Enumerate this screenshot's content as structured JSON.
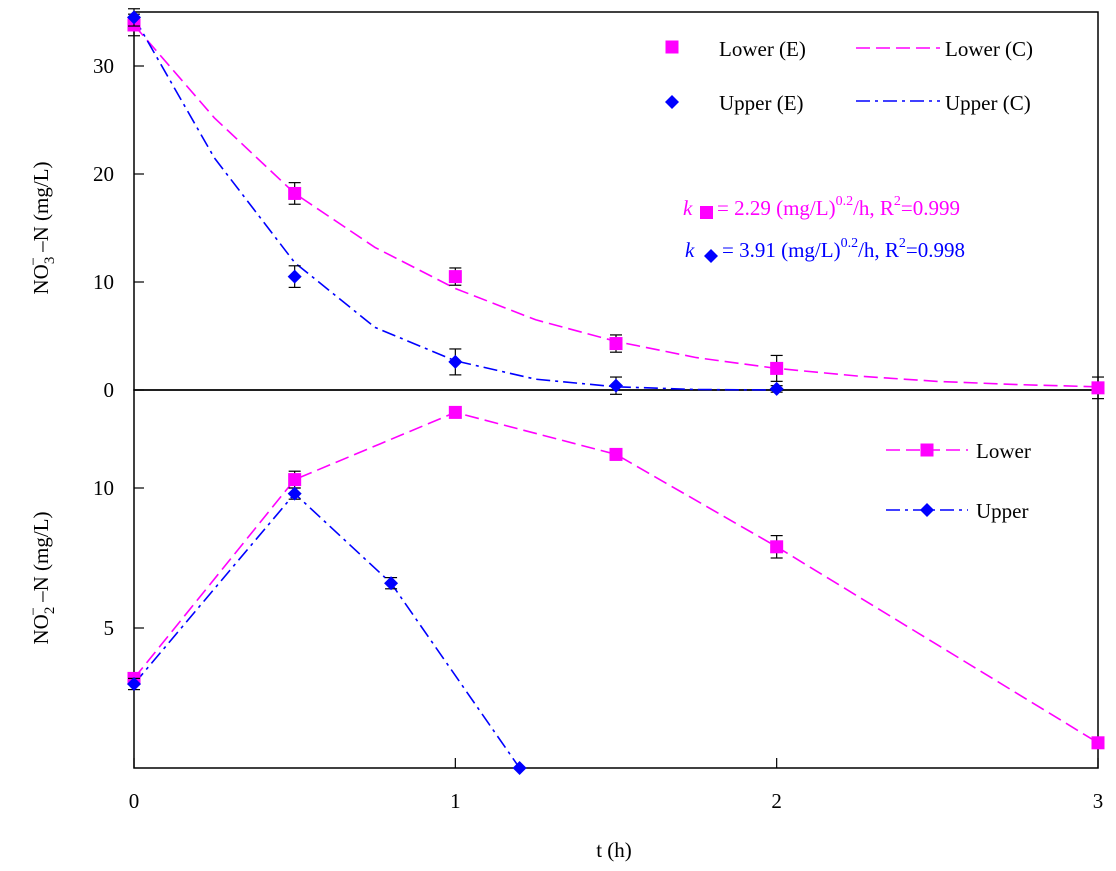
{
  "chart_data": [
    {
      "type": "scatter",
      "panel": "top",
      "ylabel_main": "NO",
      "ylabel_sub": "3",
      "ylabel_sup": "−",
      "ylabel_rest": " –N (mg/L)",
      "xlim": [
        0,
        3
      ],
      "ylim": [
        0,
        35
      ],
      "yticks": [
        0,
        10,
        20,
        30
      ],
      "series": [
        {
          "name": "Lower (E)",
          "kind": "points",
          "marker": "square",
          "color": "#ff00ff",
          "x": [
            0,
            0.5,
            1,
            1.5,
            2,
            3
          ],
          "y": [
            33.8,
            18.2,
            10.5,
            4.3,
            2.0,
            0.2
          ],
          "err": [
            1.0,
            1.0,
            0.8,
            0.8,
            1.2,
            1.0
          ]
        },
        {
          "name": "Upper (E)",
          "kind": "points",
          "marker": "diamond",
          "color": "#0000ff",
          "x": [
            0,
            0.5,
            1,
            1.5,
            2
          ],
          "y": [
            34.5,
            10.5,
            2.6,
            0.4,
            0.1
          ],
          "err": [
            0.8,
            1.0,
            1.2,
            0.8,
            0.3
          ]
        },
        {
          "name": "Lower (C)",
          "kind": "curve",
          "dash": "dash",
          "color": "#ff00ff",
          "x": [
            0,
            0.25,
            0.5,
            0.75,
            1,
            1.25,
            1.5,
            1.75,
            2,
            2.25,
            2.5,
            2.75,
            3
          ],
          "y": [
            33.8,
            25.2,
            18.2,
            13.2,
            9.4,
            6.5,
            4.5,
            3.0,
            2.0,
            1.3,
            0.8,
            0.5,
            0.3
          ]
        },
        {
          "name": "Upper (C)",
          "kind": "curve",
          "dash": "dashdot",
          "color": "#0000ff",
          "x": [
            0,
            0.25,
            0.5,
            0.75,
            1,
            1.25,
            1.5,
            1.75,
            2
          ],
          "y": [
            34.5,
            21.5,
            11.8,
            5.8,
            2.7,
            1.0,
            0.3,
            0.05,
            0.0
          ]
        }
      ],
      "annotations": {
        "k_lower": {
          "k": "k",
          "text": " =  2.29  (mg/L)",
          "sup": "0.2",
          "text2": "/h, R",
          "sup2": "2",
          "text3": "=0.999",
          "color": "#ff00ff"
        },
        "k_upper": {
          "k": "k",
          "text": " = 3.91  (mg/L)",
          "sup": "0.2",
          "text2": "/h, R",
          "sup2": "2",
          "text3": "=0.998",
          "color": "#0000ff"
        }
      },
      "legend": "top-right"
    },
    {
      "type": "line",
      "panel": "bottom",
      "ylabel_main": "NO",
      "ylabel_sub": "2",
      "ylabel_sup": "−",
      "ylabel_rest": " –N (mg/L)",
      "xlabel": "t (h)",
      "xlim": [
        0,
        3
      ],
      "ylim": [
        0,
        13.5
      ],
      "yticks": [
        5,
        10
      ],
      "xticks": [
        0,
        1,
        2,
        3
      ],
      "series": [
        {
          "name": "Lower",
          "marker": "square",
          "dash": "dash",
          "color": "#ff00ff",
          "x": [
            0,
            0.5,
            1,
            1.5,
            2,
            3
          ],
          "y": [
            3.2,
            10.3,
            12.7,
            11.2,
            7.9,
            0.9
          ],
          "err": [
            0.0,
            0.3,
            0.0,
            0.2,
            0.4,
            0.0
          ]
        },
        {
          "name": "Upper",
          "marker": "diamond",
          "dash": "dashdot",
          "color": "#0000ff",
          "x": [
            0,
            0.5,
            0.8,
            1.2
          ],
          "y": [
            3.0,
            9.8,
            6.6,
            0.0
          ],
          "err": [
            0.2,
            0.2,
            0.2,
            0.0
          ]
        }
      ],
      "legend": "top-right"
    }
  ]
}
